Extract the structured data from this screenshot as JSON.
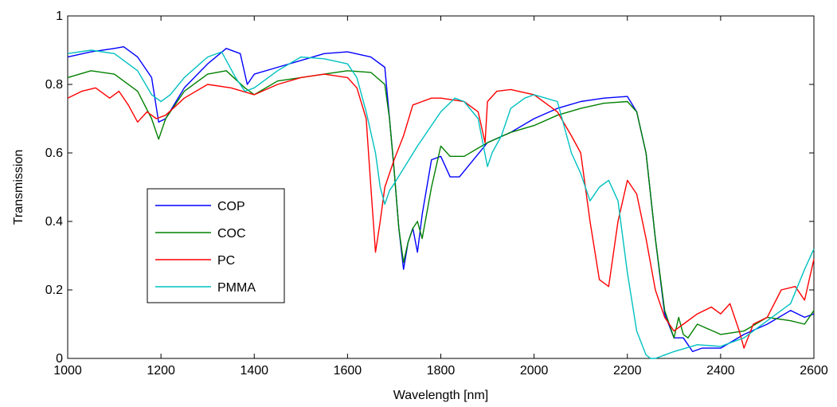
{
  "chart_data": {
    "type": "line",
    "title": "",
    "xlabel": "Wavelength [nm]",
    "ylabel": "Transmission",
    "xlim": [
      1000,
      2600
    ],
    "ylim": [
      0,
      1
    ],
    "xticks": [
      1000,
      1200,
      1400,
      1600,
      1800,
      2000,
      2200,
      2400,
      2600
    ],
    "xtick_labels": [
      "1000",
      "1200",
      "1400",
      "1600",
      "1800",
      "2000",
      "2200",
      "2400",
      "2600"
    ],
    "yticks": [
      0,
      0.2,
      0.4,
      0.6,
      0.8,
      1
    ],
    "ytick_labels": [
      "0",
      "0.2",
      "0.4",
      "0.6",
      "0.8",
      "1"
    ],
    "grid": false,
    "legend_position": "left-middle",
    "series": [
      {
        "name": "COP",
        "color": "#0000ff",
        "x": [
          1000,
          1050,
          1100,
          1120,
          1150,
          1180,
          1195,
          1210,
          1250,
          1300,
          1340,
          1370,
          1385,
          1400,
          1450,
          1500,
          1550,
          1600,
          1650,
          1680,
          1690,
          1700,
          1710,
          1720,
          1730,
          1740,
          1750,
          1760,
          1780,
          1800,
          1820,
          1840,
          1870,
          1900,
          1950,
          2000,
          2050,
          2100,
          2150,
          2200,
          2220,
          2240,
          2260,
          2280,
          2300,
          2320,
          2340,
          2360,
          2400,
          2450,
          2500,
          2550,
          2580,
          2600
        ],
        "y": [
          0.88,
          0.895,
          0.905,
          0.91,
          0.88,
          0.82,
          0.69,
          0.7,
          0.79,
          0.86,
          0.905,
          0.89,
          0.8,
          0.83,
          0.85,
          0.87,
          0.89,
          0.895,
          0.88,
          0.85,
          0.7,
          0.55,
          0.38,
          0.26,
          0.34,
          0.38,
          0.31,
          0.42,
          0.58,
          0.59,
          0.53,
          0.53,
          0.58,
          0.63,
          0.66,
          0.7,
          0.73,
          0.75,
          0.76,
          0.765,
          0.72,
          0.6,
          0.35,
          0.13,
          0.06,
          0.06,
          0.02,
          0.03,
          0.03,
          0.07,
          0.1,
          0.14,
          0.12,
          0.13
        ]
      },
      {
        "name": "COC",
        "color": "#008000",
        "x": [
          1000,
          1050,
          1100,
          1150,
          1180,
          1195,
          1210,
          1250,
          1300,
          1340,
          1380,
          1400,
          1450,
          1500,
          1550,
          1600,
          1650,
          1680,
          1690,
          1700,
          1710,
          1720,
          1730,
          1740,
          1750,
          1760,
          1780,
          1800,
          1820,
          1850,
          1900,
          1950,
          2000,
          2050,
          2100,
          2150,
          2200,
          2220,
          2240,
          2260,
          2280,
          2300,
          2310,
          2320,
          2330,
          2350,
          2400,
          2450,
          2500,
          2550,
          2580,
          2600
        ],
        "y": [
          0.82,
          0.84,
          0.83,
          0.78,
          0.7,
          0.64,
          0.7,
          0.78,
          0.83,
          0.84,
          0.79,
          0.77,
          0.81,
          0.82,
          0.83,
          0.84,
          0.835,
          0.8,
          0.7,
          0.55,
          0.38,
          0.28,
          0.34,
          0.38,
          0.4,
          0.35,
          0.5,
          0.62,
          0.59,
          0.59,
          0.63,
          0.66,
          0.68,
          0.71,
          0.73,
          0.745,
          0.75,
          0.72,
          0.6,
          0.35,
          0.14,
          0.06,
          0.12,
          0.07,
          0.06,
          0.1,
          0.07,
          0.08,
          0.12,
          0.11,
          0.1,
          0.14
        ]
      },
      {
        "name": "PC",
        "color": "#ff0000",
        "x": [
          1000,
          1030,
          1060,
          1090,
          1110,
          1130,
          1150,
          1170,
          1190,
          1210,
          1250,
          1300,
          1350,
          1400,
          1450,
          1500,
          1550,
          1600,
          1620,
          1640,
          1650,
          1660,
          1670,
          1680,
          1700,
          1720,
          1740,
          1760,
          1780,
          1800,
          1850,
          1880,
          1895,
          1900,
          1920,
          1950,
          2000,
          2050,
          2080,
          2100,
          2120,
          2140,
          2160,
          2180,
          2200,
          2220,
          2240,
          2260,
          2280,
          2300,
          2320,
          2350,
          2380,
          2400,
          2420,
          2440,
          2450,
          2470,
          2500,
          2530,
          2560,
          2580,
          2600
        ],
        "y": [
          0.76,
          0.78,
          0.79,
          0.76,
          0.78,
          0.74,
          0.69,
          0.72,
          0.7,
          0.71,
          0.76,
          0.8,
          0.79,
          0.77,
          0.8,
          0.82,
          0.83,
          0.82,
          0.79,
          0.7,
          0.5,
          0.31,
          0.4,
          0.5,
          0.58,
          0.65,
          0.74,
          0.75,
          0.76,
          0.76,
          0.75,
          0.72,
          0.63,
          0.75,
          0.78,
          0.785,
          0.77,
          0.72,
          0.65,
          0.6,
          0.4,
          0.23,
          0.21,
          0.4,
          0.52,
          0.48,
          0.35,
          0.2,
          0.12,
          0.08,
          0.1,
          0.13,
          0.15,
          0.13,
          0.16,
          0.08,
          0.03,
          0.1,
          0.12,
          0.2,
          0.21,
          0.17,
          0.29
        ]
      },
      {
        "name": "PMMA",
        "color": "#00c0c0",
        "x": [
          1000,
          1050,
          1100,
          1150,
          1180,
          1200,
          1220,
          1250,
          1300,
          1330,
          1360,
          1380,
          1400,
          1450,
          1500,
          1550,
          1600,
          1620,
          1640,
          1660,
          1670,
          1680,
          1690,
          1700,
          1750,
          1800,
          1830,
          1850,
          1880,
          1900,
          1910,
          1930,
          1950,
          1980,
          2000,
          2050,
          2080,
          2100,
          2120,
          2140,
          2160,
          2180,
          2200,
          2220,
          2240,
          2250,
          2260,
          2270,
          2280,
          2300,
          2350,
          2400,
          2450,
          2500,
          2550,
          2580,
          2600
        ],
        "y": [
          0.89,
          0.9,
          0.89,
          0.84,
          0.77,
          0.75,
          0.77,
          0.82,
          0.88,
          0.895,
          0.82,
          0.78,
          0.79,
          0.84,
          0.88,
          0.875,
          0.86,
          0.82,
          0.72,
          0.6,
          0.5,
          0.45,
          0.49,
          0.51,
          0.62,
          0.72,
          0.76,
          0.75,
          0.7,
          0.56,
          0.6,
          0.65,
          0.73,
          0.76,
          0.77,
          0.75,
          0.6,
          0.54,
          0.46,
          0.5,
          0.52,
          0.46,
          0.25,
          0.08,
          0.01,
          0.0,
          0.0,
          0.005,
          0.01,
          0.02,
          0.04,
          0.035,
          0.06,
          0.11,
          0.16,
          0.26,
          0.32
        ]
      }
    ]
  }
}
